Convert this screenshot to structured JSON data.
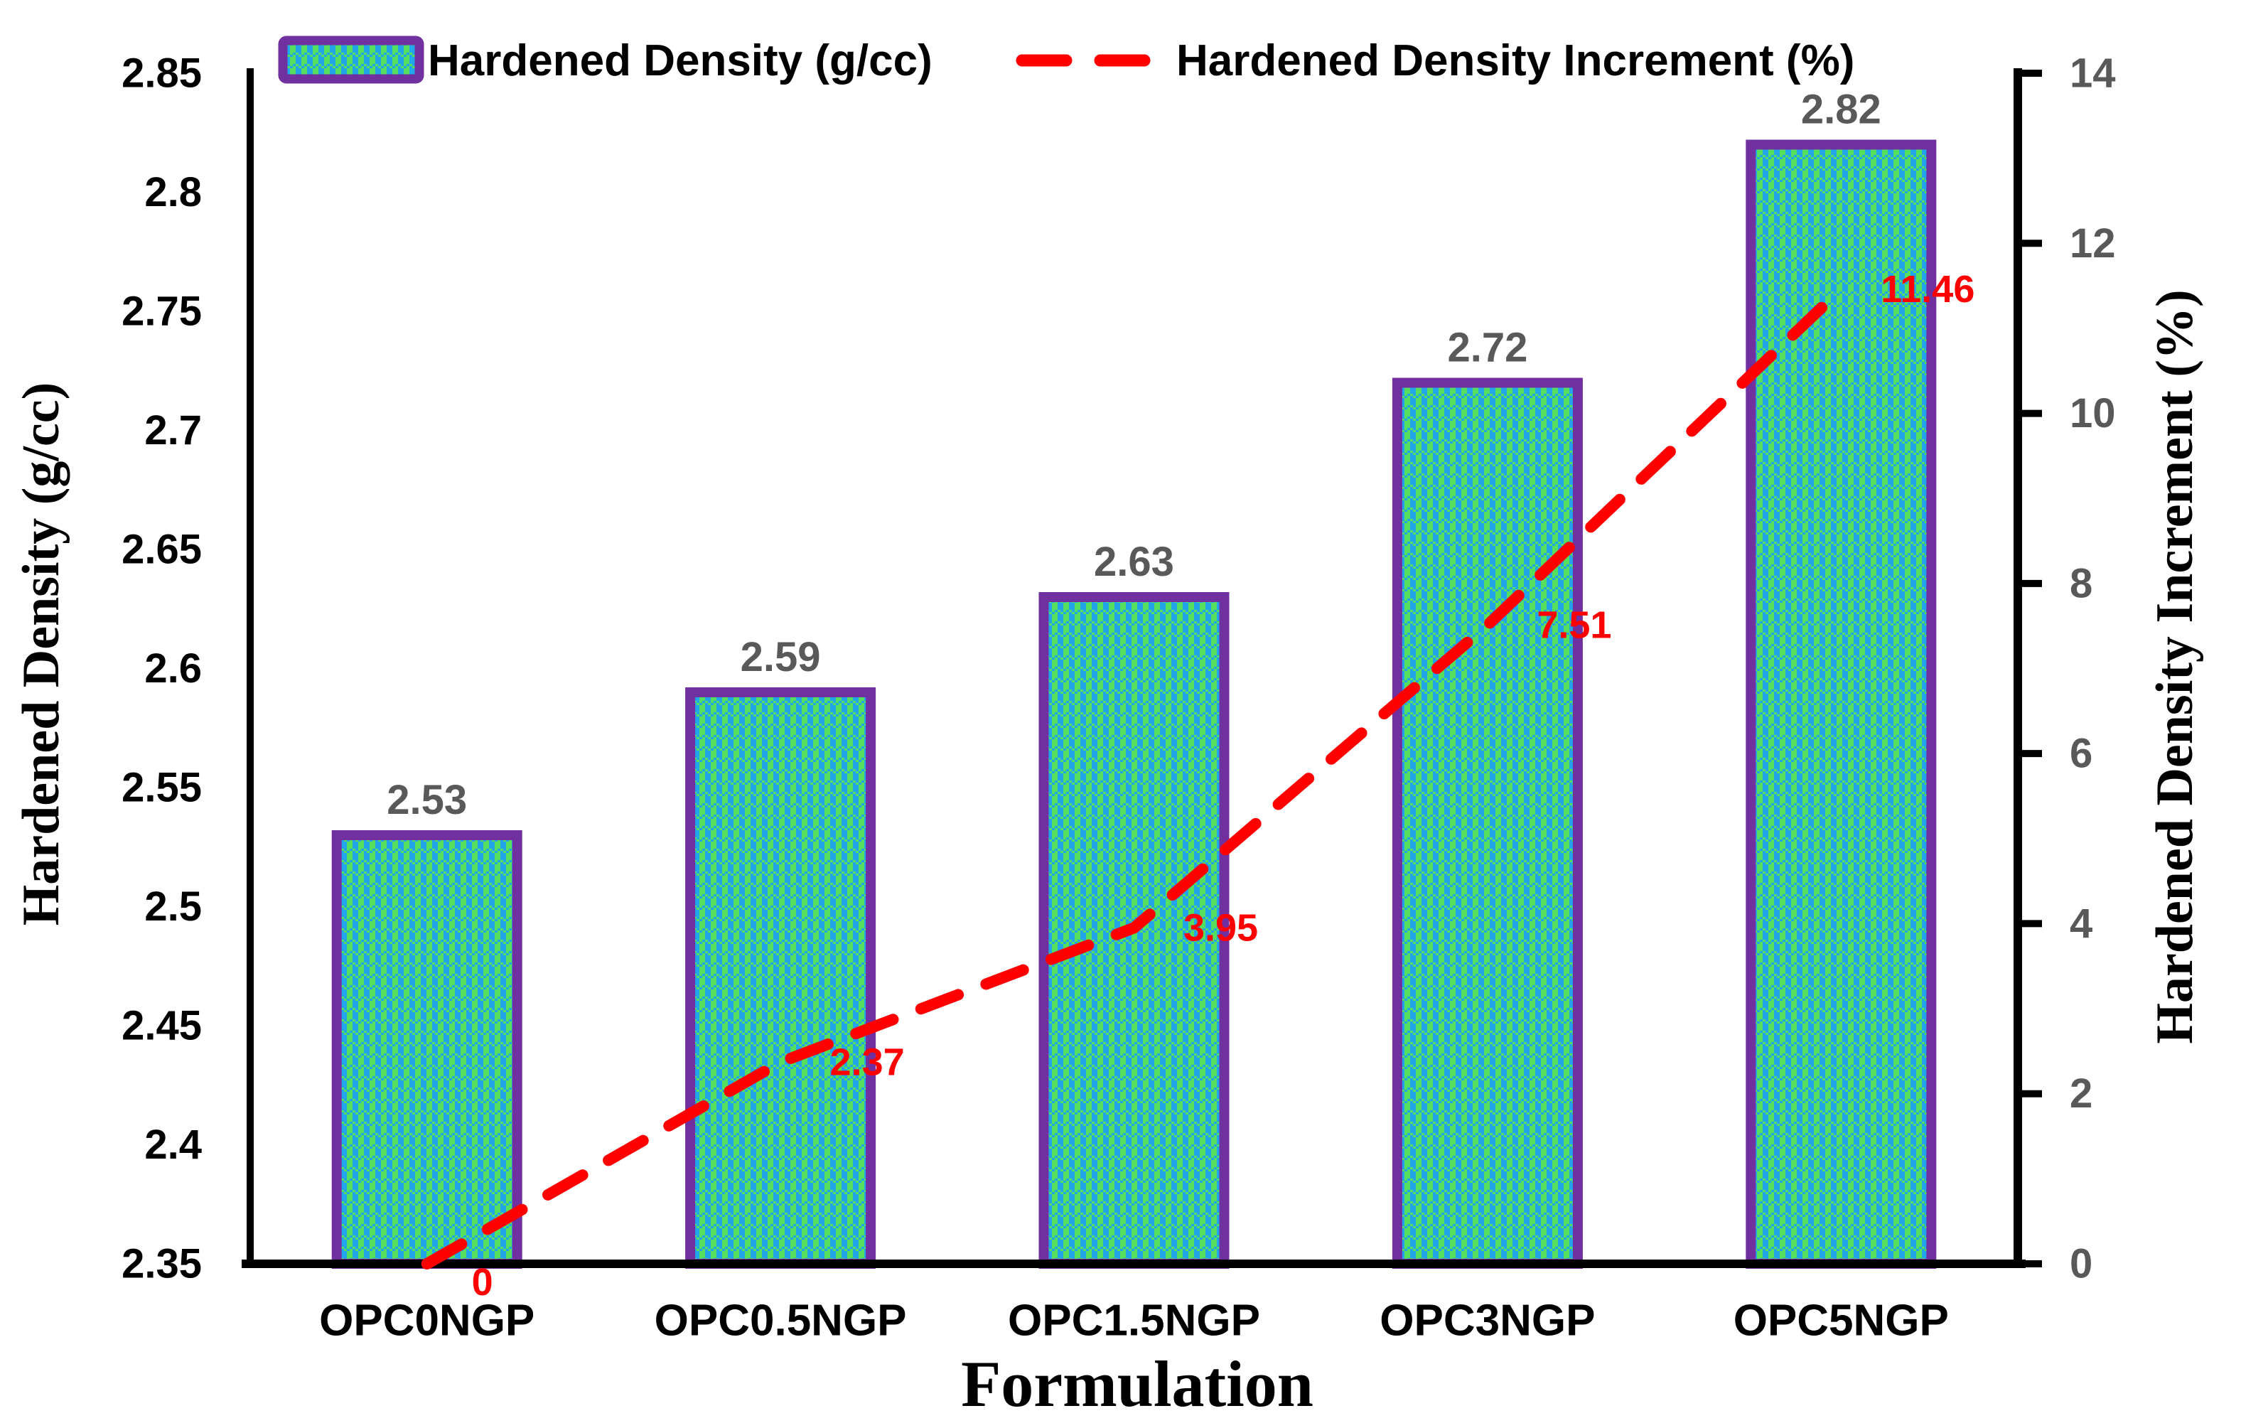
{
  "figure": {
    "background": "#ffffff"
  },
  "chart_data": {
    "type": "bar+line",
    "title": "",
    "xlabel": "Formulation",
    "ylabel_left": "Hardened Density (g/cc)",
    "ylabel_right": "Hardened Density Increment (%)",
    "categories": [
      "OPC0NGP",
      "OPC0.5NGP",
      "OPC1.5NGP",
      "OPC3NGP",
      "OPC5NGP"
    ],
    "series": [
      {
        "name": "Hardened Density (g/cc)",
        "type": "bar",
        "axis": "left",
        "values": [
          2.53,
          2.59,
          2.63,
          2.72,
          2.82
        ],
        "labels": [
          "2.53",
          "2.59",
          "2.63",
          "2.72",
          "2.82"
        ]
      },
      {
        "name": "Hardened Density Increment (%)",
        "type": "line",
        "axis": "right",
        "values": [
          0,
          2.37,
          3.95,
          7.51,
          11.46
        ],
        "labels": [
          "0",
          "2.37",
          "3.95",
          "7.51",
          "11.46"
        ]
      }
    ],
    "left_axis": {
      "min": 2.35,
      "max": 2.85,
      "step": 0.05,
      "ticks": [
        "2.85",
        "2.8",
        "2.75",
        "2.7",
        "2.65",
        "2.6",
        "2.55",
        "2.5",
        "2.45",
        "2.4",
        "2.35"
      ]
    },
    "right_axis": {
      "min": 0,
      "max": 14,
      "step": 2,
      "ticks": [
        "14",
        "12",
        "10",
        "8",
        "6",
        "4",
        "2",
        "0"
      ]
    },
    "legend": {
      "position": "top",
      "items": [
        {
          "label": "Hardened Density (g/cc)",
          "swatch": "patterned-bar-swatch"
        },
        {
          "label": "Hardened Density Increment (%)",
          "swatch": "red-dash-swatch"
        }
      ]
    },
    "colors": {
      "bar_green": "#55df5f",
      "bar_blue": "#22a5ea",
      "bar_border": "#7030a0",
      "line_red": "#ff0000",
      "value_label_gray": "#595959",
      "axis_black": "#000000"
    },
    "grid": false
  }
}
